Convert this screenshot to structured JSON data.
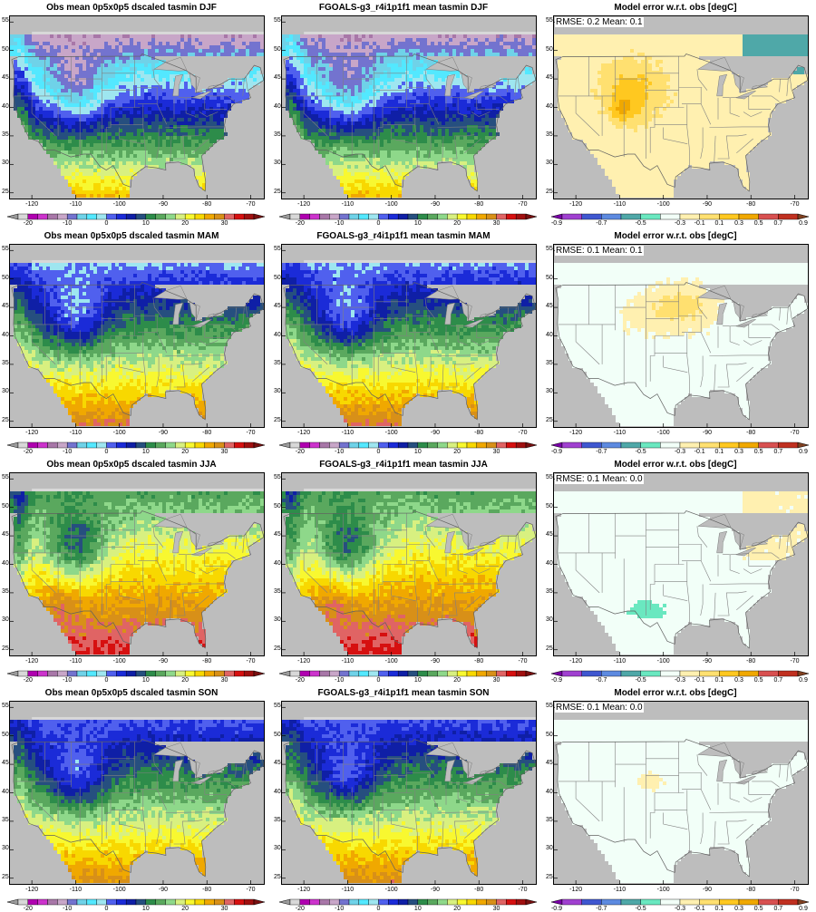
{
  "palettes": {
    "abs": [
      "#9b9b9b",
      "#d8d8d8",
      "#b000b0",
      "#cc33cc",
      "#a877a8",
      "#c8a6c8",
      "#7373cf",
      "#6fd2e8",
      "#53e8ff",
      "#9ee6f0",
      "#5060ee",
      "#1b2bd8",
      "#0f1fa6",
      "#264f7f",
      "#2d8c4a",
      "#5aa85e",
      "#8ed88a",
      "#d8f080",
      "#f8f830",
      "#f8d800",
      "#f0a800",
      "#d89018",
      "#e06464",
      "#d61010",
      "#a01010",
      "#781010"
    ],
    "err": [
      "#7a00a8",
      "#a040d0",
      "#3f57d0",
      "#5d8ae0",
      "#4fa8a8",
      "#6ae8c0",
      "#f2fff8",
      "#fff0b0",
      "#ffe070",
      "#ffc820",
      "#f0a800",
      "#d85050",
      "#c03020",
      "#804020"
    ]
  },
  "cbar_abs_labels": [
    "-20",
    "-10",
    "0",
    "10",
    "20",
    "30"
  ],
  "cbar_err_labels": [
    "-0.9",
    "-0.7",
    "-0.5",
    "-0.3",
    "-0.1",
    "0.1",
    "0.3",
    "0.5",
    "0.7",
    "0.9"
  ],
  "lat_ticks": [
    "55",
    "50",
    "45",
    "40",
    "35",
    "30",
    "25"
  ],
  "lon_ticks": [
    "-120",
    "-110",
    "-100",
    "-90",
    "-80",
    "-70"
  ],
  "rows": [
    {
      "season": "DJF",
      "obs": {
        "title": "Obs mean 0p5x0p5 dscaled tasmin DJF"
      },
      "model": {
        "title": "FGOALS-g3_r4i1p1f1 mean tasmin DJF"
      },
      "error": {
        "title": "Model error w.r.t. obs [degC]",
        "stats": "RMSE: 0.2  Mean: 0.1"
      }
    },
    {
      "season": "MAM",
      "obs": {
        "title": "Obs mean 0p5x0p5 dscaled tasmin MAM"
      },
      "model": {
        "title": "FGOALS-g3_r4i1p1f1 mean tasmin MAM"
      },
      "error": {
        "title": "Model error w.r.t. obs [degC]",
        "stats": "RMSE: 0.1  Mean: 0.1"
      }
    },
    {
      "season": "JJA",
      "obs": {
        "title": "Obs mean 0p5x0p5 dscaled tasmin JJA"
      },
      "model": {
        "title": "FGOALS-g3_r4i1p1f1 mean tasmin JJA"
      },
      "error": {
        "title": "Model error w.r.t. obs [degC]",
        "stats": "RMSE: 0.1  Mean: 0.0"
      }
    },
    {
      "season": "SON",
      "obs": {
        "title": "Obs mean 0p5x0p5 dscaled tasmin SON"
      },
      "model": {
        "title": "FGOALS-g3_r4i1p1f1 mean tasmin SON"
      },
      "error": {
        "title": "Model error w.r.t. obs [degC]",
        "stats": "RMSE: 0.1  Mean: 0.0"
      }
    }
  ]
}
